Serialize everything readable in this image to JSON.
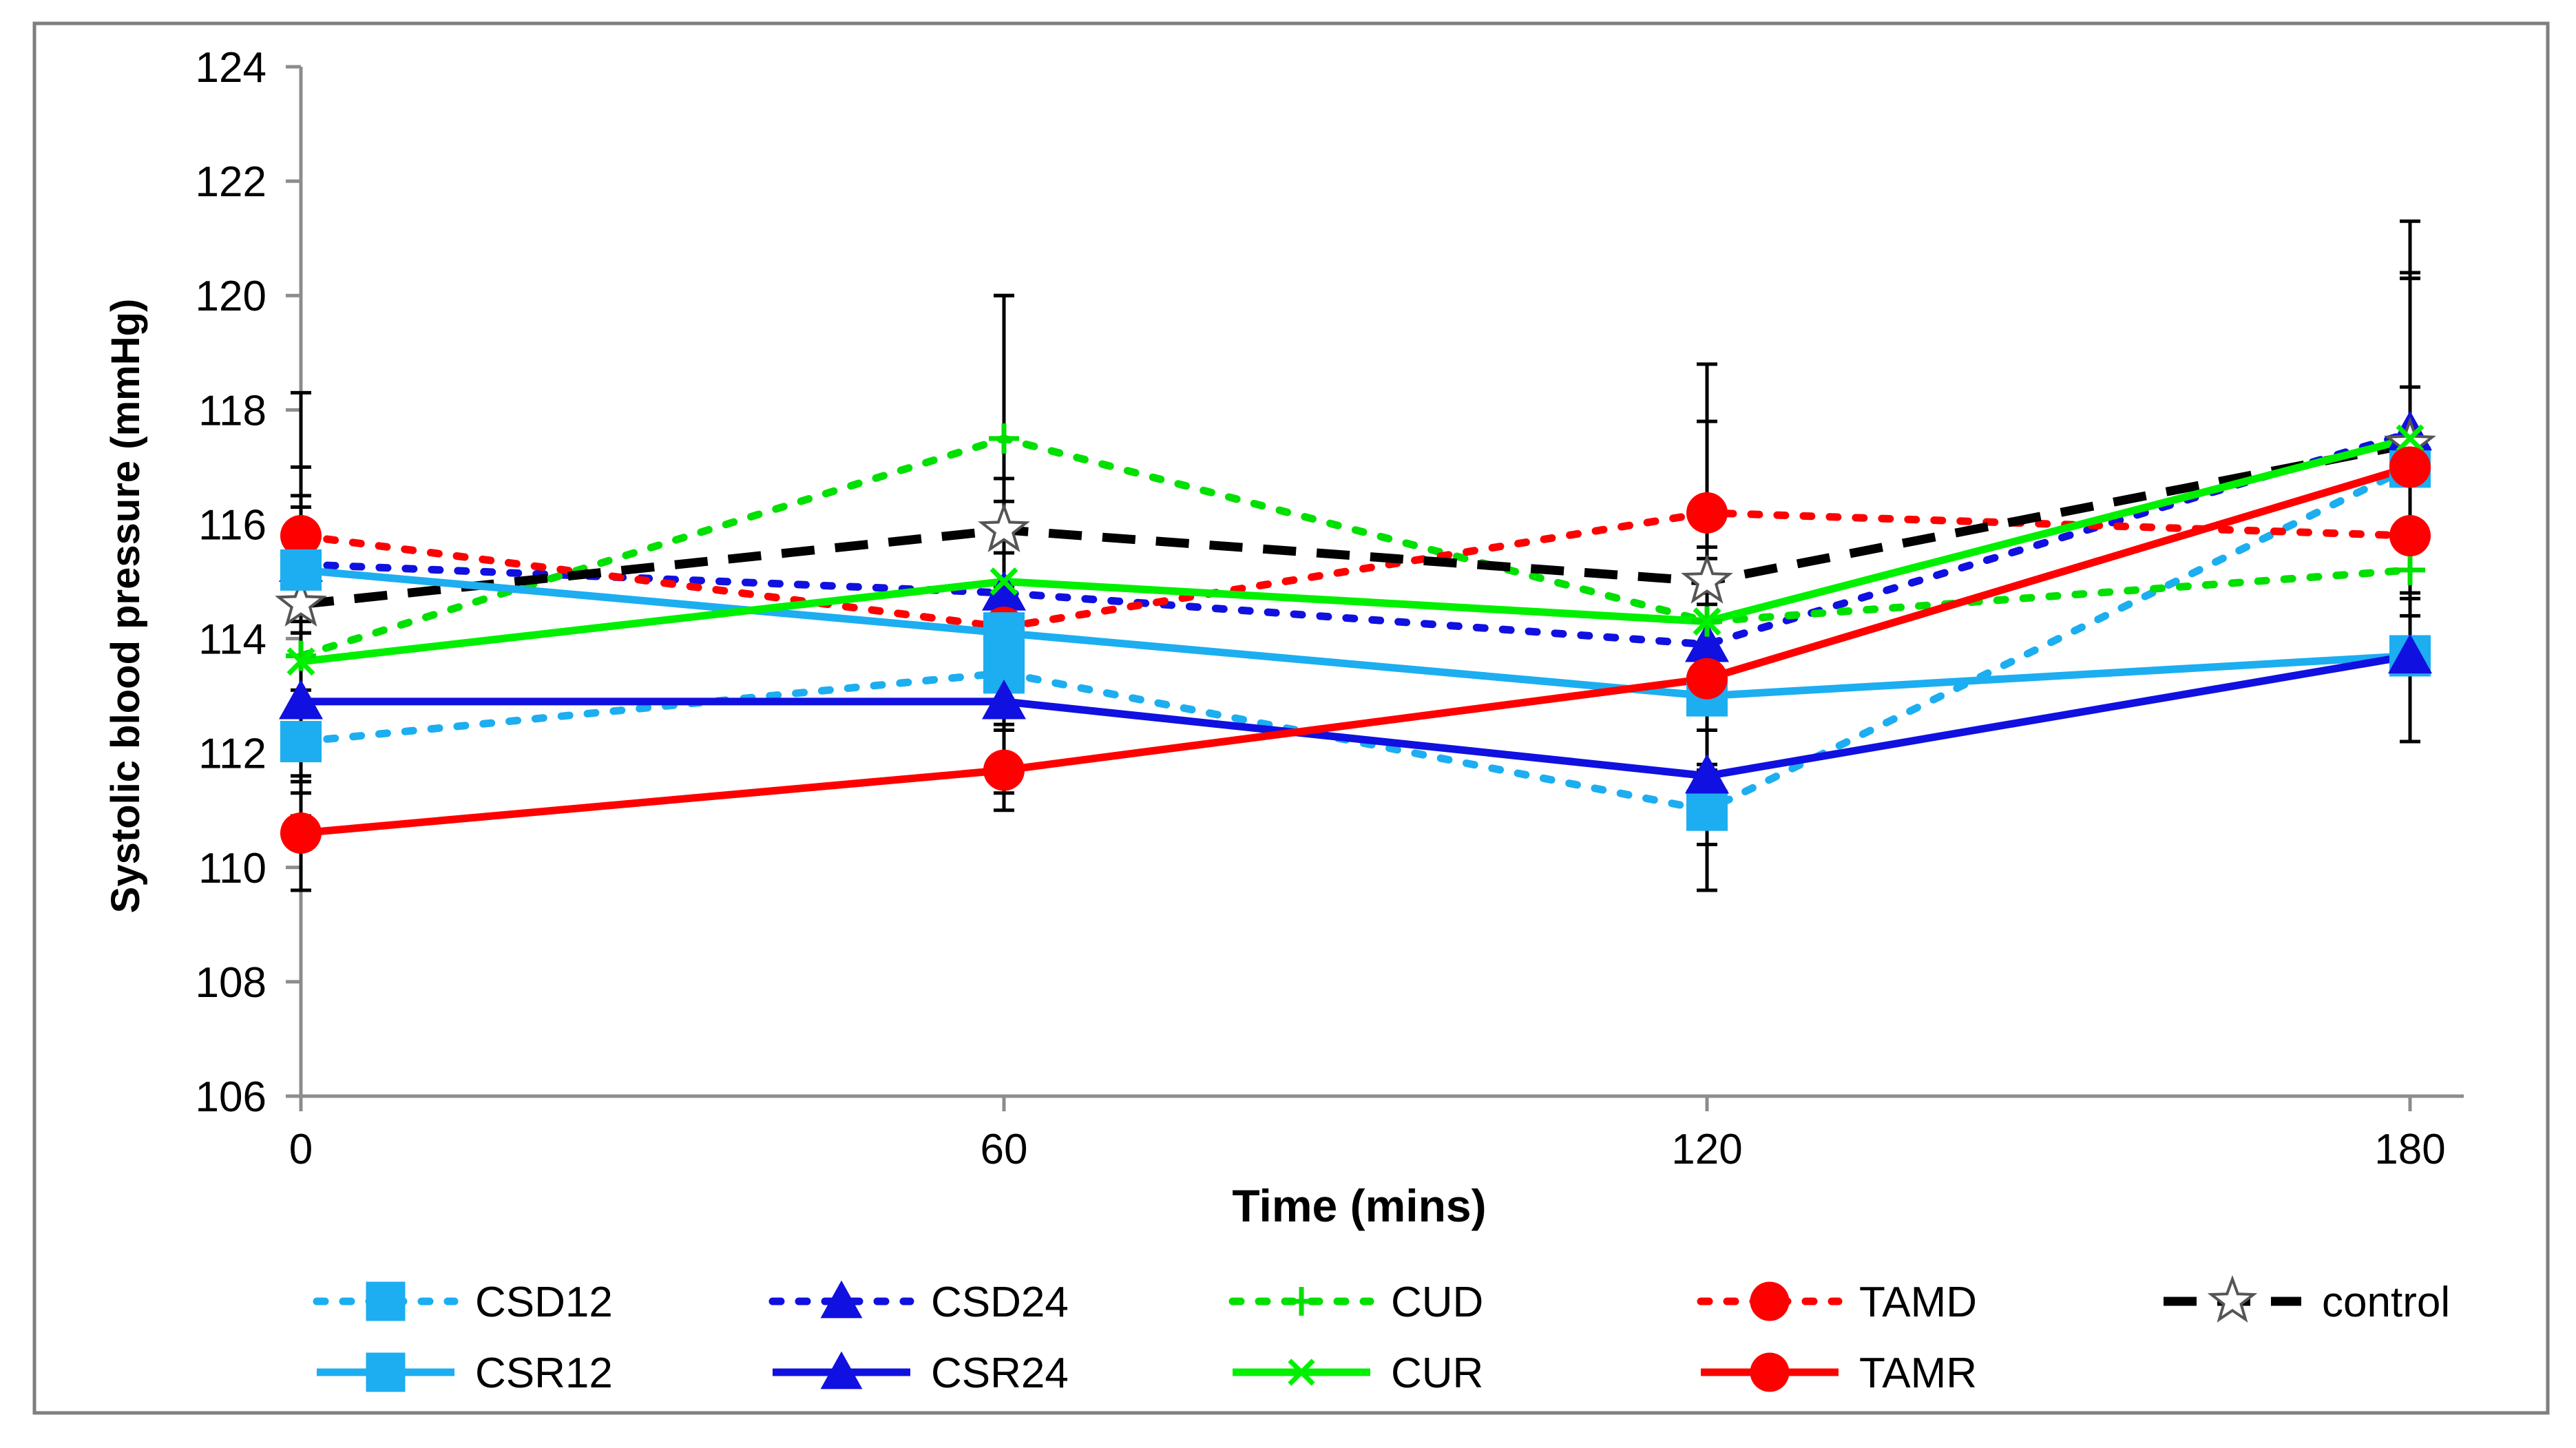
{
  "chart_data": {
    "type": "line",
    "title": "",
    "xlabel": "Time (mins)",
    "ylabel": "Systolic blood pressure (mmHg)",
    "x": [
      0,
      60,
      120,
      180
    ],
    "x_tick_labels": [
      "0",
      "60",
      "120",
      "180"
    ],
    "xlim": [
      0,
      180
    ],
    "ylim": [
      106,
      124
    ],
    "y_ticks": [
      106,
      108,
      110,
      112,
      114,
      116,
      118,
      120,
      122,
      124
    ],
    "y_tick_labels": [
      "106",
      "108",
      "110",
      "112",
      "114",
      "116",
      "118",
      "120",
      "122",
      "124"
    ],
    "grid": false,
    "legend_position": "bottom",
    "series": [
      {
        "name": "CSD12",
        "values": [
          112.2,
          113.4,
          111.0,
          117.0
        ],
        "err": [
          0.9,
          1.5,
          1.4,
          1.4
        ],
        "color": "#1CAEF0",
        "dash": "dotted",
        "marker": "square"
      },
      {
        "name": "CSD24",
        "values": [
          115.3,
          114.8,
          113.9,
          117.6
        ],
        "err": [
          1.2,
          1.6,
          1.2,
          2.8
        ],
        "color": "#1010E0",
        "dash": "dotted",
        "marker": "triangle"
      },
      {
        "name": "CUD",
        "values": [
          113.7,
          117.5,
          114.3,
          115.2
        ],
        "err": [
          1.3,
          2.5,
          1.1,
          1.7
        ],
        "color": "#00E000",
        "dash": "dotted",
        "marker": "plus"
      },
      {
        "name": "TAMD",
        "values": [
          115.8,
          114.2,
          116.2,
          115.8
        ],
        "err": [
          1.2,
          1.7,
          1.6,
          1.4
        ],
        "color": "#FF0000",
        "dash": "dotted",
        "marker": "circle"
      },
      {
        "name": "control",
        "values": [
          114.6,
          115.9,
          115.0,
          117.4
        ],
        "err": [
          3.7,
          4.1,
          3.8,
          3.9
        ],
        "color": "#000000",
        "dash": "dashed",
        "marker": "star"
      },
      {
        "name": "CSR12",
        "values": [
          115.2,
          114.1,
          113.0,
          113.7
        ],
        "err": [
          1.1,
          1.4,
          1.3,
          1.5
        ],
        "color": "#1CAEF0",
        "dash": "solid",
        "marker": "square"
      },
      {
        "name": "CSR24",
        "values": [
          112.9,
          112.9,
          111.6,
          113.7
        ],
        "err": [
          1.4,
          1.6,
          1.2,
          1.5
        ],
        "color": "#1010E0",
        "dash": "solid",
        "marker": "triangle"
      },
      {
        "name": "CUR",
        "values": [
          113.6,
          115.0,
          114.3,
          117.5
        ],
        "err": [
          1.3,
          1.8,
          1.3,
          2.8
        ],
        "color": "#00F000",
        "dash": "solid",
        "marker": "x"
      },
      {
        "name": "TAMR",
        "values": [
          110.6,
          111.7,
          113.3,
          117.0
        ],
        "err": [
          1.0,
          0.7,
          1.5,
          3.3
        ],
        "color": "#FF0000",
        "dash": "solid",
        "marker": "circle"
      }
    ]
  }
}
